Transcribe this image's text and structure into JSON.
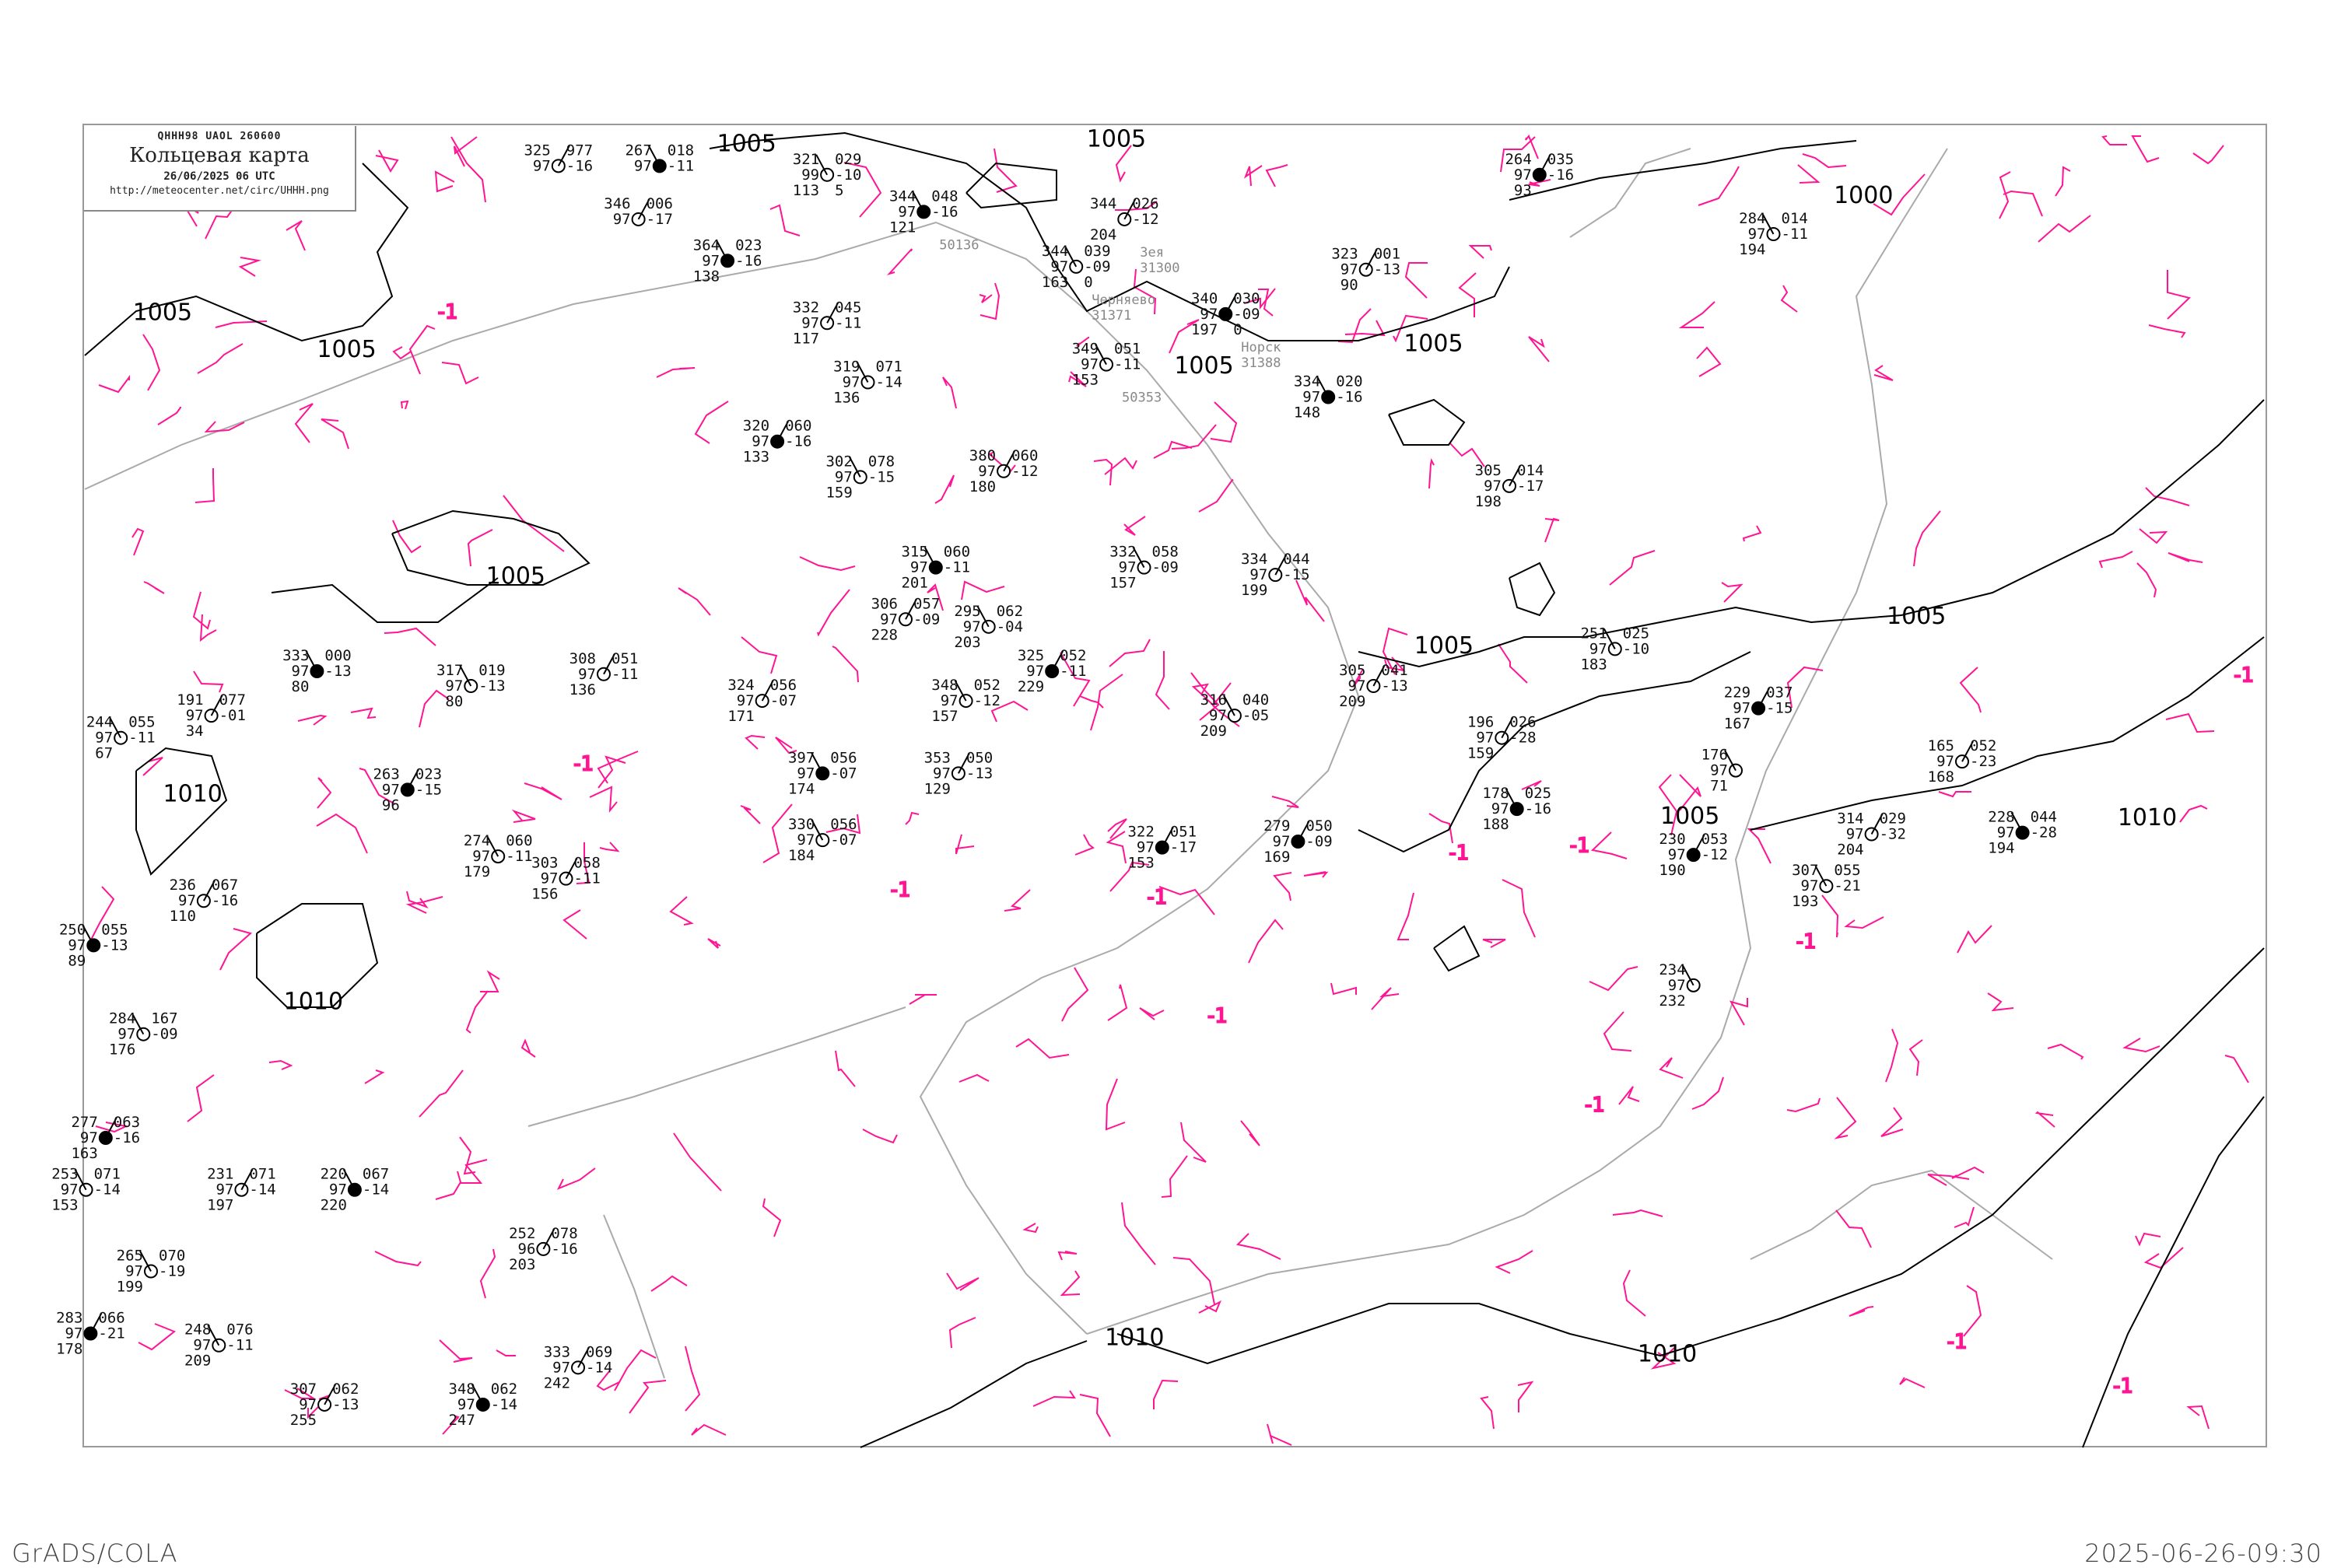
{
  "header": {
    "code_line": "QHHH98   UAOL   260600",
    "title": "Кольцевая карта",
    "datetime": "26/06/2025 06 UTC",
    "url": "http://meteocenter.net/circ/UHHH.png"
  },
  "footer": {
    "left": "GrADS/COLA",
    "right": "2025-06-26-09:30"
  },
  "colors": {
    "isobar": "#000000",
    "isallobar": "#ff1493",
    "coastline": "#aaaaaa",
    "station_name": "#888888",
    "water": "#3399ff",
    "precip_mark": "#00bb00"
  },
  "isobar_labels": [
    "1005",
    "1005",
    "1000",
    "1005",
    "1005",
    "1005",
    "1005",
    "1005",
    "1005",
    "1005",
    "1005",
    "1010",
    "1010",
    "1010",
    "1010",
    "1010"
  ],
  "isallobar_label": "-1",
  "stations": [
    {
      "p": "344",
      "u": "97",
      "h": "121",
      "t": "048",
      "d": "-16",
      "name": "",
      "id": "50136"
    },
    {
      "p": "344",
      "u": "",
      "h": "204",
      "t": "026",
      "d": "-12",
      "name": "Зея",
      "id": "31300"
    },
    {
      "p": "344",
      "u": "97",
      "h": "163",
      "t": "039",
      "d": "-09",
      "w": "0",
      "name": "Черняево",
      "id": "31371"
    },
    {
      "p": "340",
      "u": "97",
      "h": "197",
      "t": "030",
      "d": "-09",
      "w": "0",
      "name": "Норск",
      "id": "31388"
    },
    {
      "p": "349",
      "u": "97",
      "h": "153",
      "t": "051",
      "d": "-11",
      "name": "",
      "id": "50353"
    },
    {
      "p": "325",
      "u": "97",
      "h": "",
      "t": "977",
      "d": "-16"
    },
    {
      "p": "267",
      "u": "97",
      "h": "",
      "t": "018",
      "d": "-11"
    },
    {
      "p": "346",
      "u": "97",
      "h": "",
      "t": "006",
      "d": "-17"
    },
    {
      "p": "321",
      "u": "99",
      "h": "113",
      "t": "029",
      "d": "-10",
      "w": "5"
    },
    {
      "p": "264",
      "u": "97",
      "h": "93",
      "t": "035",
      "d": "-16"
    },
    {
      "p": "284",
      "u": "97",
      "h": "194",
      "t": "014",
      "d": "-11"
    },
    {
      "p": "323",
      "u": "97",
      "h": "90",
      "t": "001",
      "d": "-13"
    },
    {
      "p": "364",
      "u": "97",
      "h": "138",
      "t": "023",
      "d": "-16"
    },
    {
      "p": "332",
      "u": "97",
      "h": "117",
      "t": "045",
      "d": "-11"
    },
    {
      "p": "319",
      "u": "97",
      "h": "136",
      "t": "071",
      "d": "-14"
    },
    {
      "p": "320",
      "u": "97",
      "h": "133",
      "t": "060",
      "d": "-16"
    },
    {
      "p": "302",
      "u": "97",
      "h": "159",
      "t": "078",
      "d": "-15"
    },
    {
      "p": "380",
      "u": "97",
      "h": "180",
      "t": "060",
      "d": "-12"
    },
    {
      "p": "315",
      "u": "97",
      "h": "201",
      "t": "060",
      "d": "-11"
    },
    {
      "p": "306",
      "u": "97",
      "h": "228",
      "t": "057",
      "d": "-09"
    },
    {
      "p": "295",
      "u": "97",
      "h": "203",
      "t": "062",
      "d": "-04"
    },
    {
      "p": "325",
      "u": "97",
      "h": "229",
      "t": "052",
      "d": "-11"
    },
    {
      "p": "348",
      "u": "97",
      "h": "157",
      "t": "052",
      "d": "-12"
    },
    {
      "p": "324",
      "u": "97",
      "h": "171",
      "t": "056",
      "d": "-07"
    },
    {
      "p": "397",
      "u": "97",
      "h": "174",
      "t": "056",
      "d": "-07"
    },
    {
      "p": "353",
      "u": "97",
      "h": "129",
      "t": "050",
      "d": "-13"
    },
    {
      "p": "330",
      "u": "97",
      "h": "184",
      "t": "056",
      "d": "-07"
    },
    {
      "p": "322",
      "u": "97",
      "h": "153",
      "t": "051",
      "d": "-17"
    },
    {
      "p": "317",
      "u": "97",
      "h": "80",
      "t": "019",
      "d": "-13"
    },
    {
      "p": "308",
      "u": "97",
      "h": "136",
      "t": "051",
      "d": "-11"
    },
    {
      "p": "333",
      "u": "97",
      "h": "80",
      "t": "000",
      "d": "-13"
    },
    {
      "p": "191",
      "u": "97",
      "h": "34",
      "t": "077",
      "d": "-01"
    },
    {
      "p": "244",
      "u": "97",
      "h": "67",
      "t": "055",
      "d": "-11"
    },
    {
      "p": "263",
      "u": "97",
      "h": "96",
      "t": "023",
      "d": "-15"
    },
    {
      "p": "274",
      "u": "97",
      "h": "179",
      "t": "060",
      "d": "-11"
    },
    {
      "p": "303",
      "u": "97",
      "h": "156",
      "t": "058",
      "d": "-11"
    },
    {
      "p": "250",
      "u": "97",
      "h": "89",
      "t": "055",
      "d": "-13"
    },
    {
      "p": "236",
      "u": "97",
      "h": "110",
      "t": "067",
      "d": "-16"
    },
    {
      "p": "284",
      "u": "97",
      "h": "176",
      "t": "167",
      "d": "-09"
    },
    {
      "p": "277",
      "u": "97",
      "h": "163",
      "t": "063",
      "d": "-16"
    },
    {
      "p": "253",
      "u": "97",
      "h": "153",
      "t": "071",
      "d": "-14"
    },
    {
      "p": "231",
      "u": "97",
      "h": "197",
      "t": "071",
      "d": "-14"
    },
    {
      "p": "220",
      "u": "97",
      "h": "220",
      "t": "067",
      "d": "-14"
    },
    {
      "p": "252",
      "u": "96",
      "h": "203",
      "t": "078",
      "d": "-16"
    },
    {
      "p": "265",
      "u": "97",
      "h": "199",
      "t": "070",
      "d": "-19"
    },
    {
      "p": "283",
      "u": "97",
      "h": "178",
      "t": "066",
      "d": "-21"
    },
    {
      "p": "248",
      "u": "97",
      "h": "209",
      "t": "076",
      "d": "-11"
    },
    {
      "p": "307",
      "u": "97",
      "h": "255",
      "t": "062",
      "d": "-13"
    },
    {
      "p": "348",
      "u": "97",
      "h": "247",
      "t": "062",
      "d": "-14"
    },
    {
      "p": "333",
      "u": "97",
      "h": "242",
      "t": "069",
      "d": "-14"
    },
    {
      "p": "251",
      "u": "97",
      "h": "183",
      "t": "025",
      "d": "-10"
    },
    {
      "p": "229",
      "u": "97",
      "h": "167",
      "t": "037",
      "d": "-15"
    },
    {
      "p": "176",
      "u": "97",
      "h": "71",
      "t": "",
      "d": ""
    },
    {
      "p": "165",
      "u": "97",
      "h": "168",
      "t": "052",
      "d": "-23"
    },
    {
      "p": "228",
      "u": "97",
      "h": "194",
      "t": "044",
      "d": "-28"
    },
    {
      "p": "314",
      "u": "97",
      "h": "204",
      "t": "029",
      "d": "-32"
    },
    {
      "p": "307",
      "u": "97",
      "h": "193",
      "t": "055",
      "d": "-21"
    },
    {
      "p": "230",
      "u": "97",
      "h": "190",
      "t": "053",
      "d": "-12"
    },
    {
      "p": "234",
      "u": "97",
      "h": "232",
      "t": "",
      "d": ""
    },
    {
      "p": "196",
      "u": "97",
      "h": "159",
      "t": "026",
      "d": "-28"
    },
    {
      "p": "178",
      "u": "97",
      "h": "188",
      "t": "025",
      "d": "-16"
    },
    {
      "p": "305",
      "u": "97",
      "h": "209",
      "t": "041",
      "d": "-13"
    },
    {
      "p": "316",
      "u": "97",
      "h": "209",
      "t": "040",
      "d": "-05"
    },
    {
      "p": "279",
      "u": "97",
      "h": "169",
      "t": "050",
      "d": "-09"
    },
    {
      "p": "332",
      "u": "97",
      "h": "157",
      "t": "058",
      "d": "-09"
    },
    {
      "p": "334",
      "u": "97",
      "h": "199",
      "t": "044",
      "d": "-15"
    },
    {
      "p": "334",
      "u": "97",
      "h": "148",
      "t": "020",
      "d": "-16"
    },
    {
      "p": "305",
      "u": "97",
      "h": "198",
      "t": "014",
      "d": "-17"
    }
  ]
}
